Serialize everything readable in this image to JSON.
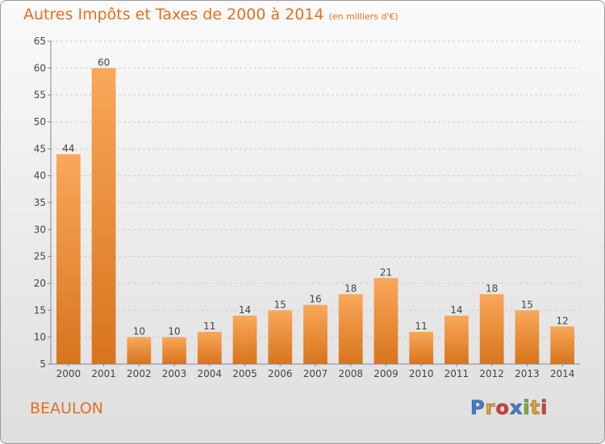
{
  "title": "Autres Impôts et Taxes de 2000 à 2014",
  "subtitle": "(en milliers d'€)",
  "commune": "BEAULON",
  "logo": {
    "letters": [
      "P",
      "r",
      "o",
      "x",
      "i",
      "t",
      "i"
    ],
    "colors": [
      "#3a7fd5",
      "#f0a020",
      "#e23a2e",
      "#3a7fd5",
      "#7ab82a",
      "#f0a020",
      "#e23a2e"
    ]
  },
  "colors": {
    "bar": "#f08a2a",
    "bar_light": "#f8ab5c",
    "accent": "#e07020"
  },
  "chart_data": {
    "type": "bar",
    "title": "Autres Impôts et Taxes de 2000 à 2014",
    "xlabel": "",
    "ylabel": "",
    "categories": [
      "2000",
      "2001",
      "2002",
      "2003",
      "2004",
      "2005",
      "2006",
      "2007",
      "2008",
      "2009",
      "2010",
      "2011",
      "2012",
      "2013",
      "2014"
    ],
    "values": [
      44,
      60,
      10,
      10,
      11,
      14,
      15,
      16,
      18,
      21,
      11,
      14,
      18,
      15,
      12
    ],
    "ylim": [
      5,
      65
    ],
    "yticks": [
      5,
      10,
      15,
      20,
      25,
      30,
      35,
      40,
      45,
      50,
      55,
      60,
      65
    ],
    "grid": true
  }
}
